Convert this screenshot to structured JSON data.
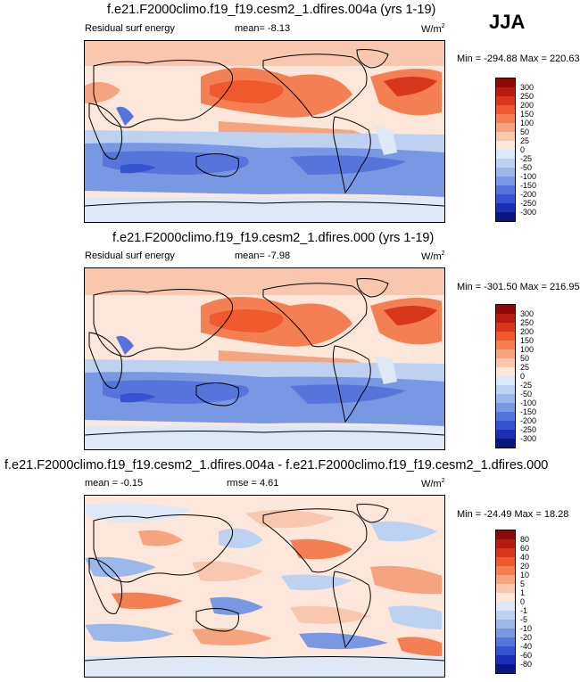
{
  "season": "JJA",
  "panels": [
    {
      "title": "f.e21.F2000climo.f19_f19.cesm2_1.dfires.004a (yrs 1-19)",
      "left_label": "Residual surf energy",
      "center_label": "mean=  -8.13",
      "units": "W/m",
      "units_sup": "2",
      "minmax": "Min = -294.88 Max = 220.63"
    },
    {
      "title": "f.e21.F2000climo.f19_f19.cesm2_1.dfires.000 (yrs 1-19)",
      "left_label": "Residual surf energy",
      "center_label": "mean=  -7.98",
      "units": "W/m",
      "units_sup": "2",
      "minmax": "Min = -301.50 Max = 216.95"
    },
    {
      "title": "f.e21.F2000climo.f19_f19.cesm2_1.dfires.004a - f.e21.F2000climo.f19_f19.cesm2_1.dfires.000",
      "left_label": "mean =  -0.15",
      "center_label": "rmse =   4.61",
      "units": "W/m",
      "units_sup": "2",
      "minmax": "Min = -24.49 Max = 18.28"
    }
  ],
  "colorbars": {
    "field_levels": [
      "300",
      "250",
      "200",
      "150",
      "100",
      "50",
      "25",
      "0",
      "-25",
      "-50",
      "-100",
      "-150",
      "-200",
      "-250",
      "-300"
    ],
    "diff_levels": [
      "80",
      "60",
      "40",
      "20",
      "10",
      "5",
      "1",
      "0",
      "-1",
      "-5",
      "-10",
      "-20",
      "-40",
      "-60",
      "-80"
    ],
    "colors": [
      "#8c0a0a",
      "#b51c12",
      "#d8361c",
      "#ee5a2e",
      "#f47f52",
      "#f6a37f",
      "#f9c7ad",
      "#fde7da",
      "#dde9f7",
      "#bdd2f0",
      "#9bb8ea",
      "#7898e3",
      "#5574dc",
      "#3454d2",
      "#1a2fb5",
      "#0a1780"
    ]
  },
  "chart_data": [
    {
      "type": "heatmap",
      "title": "f.e21.F2000climo.f19_f19.cesm2_1.dfires.004a (yrs 1-19)",
      "variable": "Residual surf energy",
      "season": "JJA",
      "units": "W/m2",
      "mean": -8.13,
      "min": -294.88,
      "max": 220.63,
      "contour_levels": [
        -300,
        -250,
        -200,
        -150,
        -100,
        -50,
        -25,
        0,
        25,
        50,
        100,
        150,
        200,
        250,
        300
      ]
    },
    {
      "type": "heatmap",
      "title": "f.e21.F2000climo.f19_f19.cesm2_1.dfires.000 (yrs 1-19)",
      "variable": "Residual surf energy",
      "season": "JJA",
      "units": "W/m2",
      "mean": -7.98,
      "min": -301.5,
      "max": 216.95,
      "contour_levels": [
        -300,
        -250,
        -200,
        -150,
        -100,
        -50,
        -25,
        0,
        25,
        50,
        100,
        150,
        200,
        250,
        300
      ]
    },
    {
      "type": "heatmap",
      "title": "f.e21.F2000climo.f19_f19.cesm2_1.dfires.004a - f.e21.F2000climo.f19_f19.cesm2_1.dfires.000",
      "season": "JJA",
      "units": "W/m2",
      "mean": -0.15,
      "rmse": 4.61,
      "min": -24.49,
      "max": 18.28,
      "contour_levels": [
        -80,
        -60,
        -40,
        -20,
        -10,
        -5,
        -1,
        0,
        1,
        5,
        10,
        20,
        40,
        60,
        80
      ]
    }
  ]
}
